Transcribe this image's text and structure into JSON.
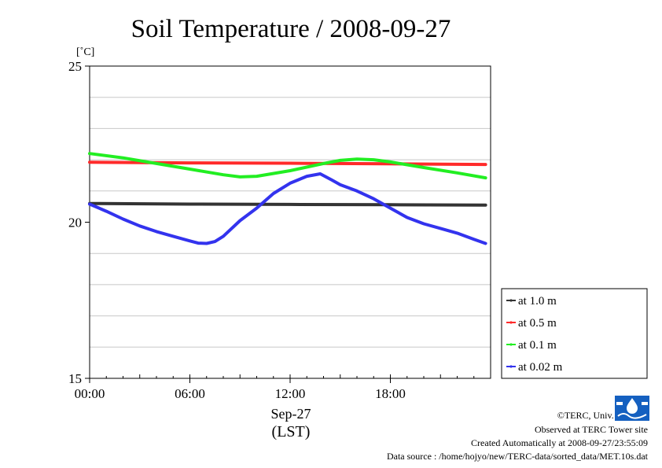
{
  "chart_data": {
    "type": "line",
    "title": "Soil Temperature / 2008-09-27",
    "unit_label": "[˚C]",
    "xlabel_line1": "Sep-27",
    "xlabel_line2": "(LST)",
    "x_domain": [
      0,
      24
    ],
    "ylim": [
      15,
      25
    ],
    "y_ticks": [
      15,
      20,
      25
    ],
    "y_grid": [
      16,
      17,
      18,
      19,
      21,
      22,
      23,
      24
    ],
    "x_ticks": [
      {
        "hour": 0,
        "label": "00:00"
      },
      {
        "hour": 6,
        "label": "06:00"
      },
      {
        "hour": 12,
        "label": "12:00"
      },
      {
        "hour": 18,
        "label": "18:00"
      }
    ],
    "grid": true,
    "legend_position": "right",
    "series": [
      {
        "name": "at 1.0 m",
        "color": "#333333",
        "x": [
          0,
          6,
          12,
          18,
          23.7
        ],
        "y": [
          20.6,
          20.58,
          20.57,
          20.56,
          20.55
        ]
      },
      {
        "name": "at 0.5 m",
        "color": "#ff2a2a",
        "x": [
          0,
          6,
          12,
          18,
          23.7
        ],
        "y": [
          21.92,
          21.9,
          21.89,
          21.87,
          21.85
        ]
      },
      {
        "name": "at 0.1 m",
        "color": "#22ee22",
        "x": [
          0,
          2,
          4,
          6,
          8,
          9,
          10,
          12,
          14,
          15,
          16,
          17,
          18,
          20,
          22,
          23.7
        ],
        "y": [
          22.2,
          22.06,
          21.88,
          21.7,
          21.52,
          21.45,
          21.47,
          21.65,
          21.88,
          21.98,
          22.02,
          22.0,
          21.93,
          21.75,
          21.58,
          21.42
        ]
      },
      {
        "name": "at 0.02 m",
        "color": "#3333ee",
        "x": [
          0,
          1,
          2,
          3,
          4,
          5,
          6,
          6.5,
          7,
          7.5,
          8,
          9,
          10,
          11,
          12,
          13,
          13.8,
          14.5,
          15,
          16,
          17,
          18,
          19,
          20,
          21,
          22,
          23,
          23.7
        ],
        "y": [
          20.58,
          20.35,
          20.1,
          19.88,
          19.7,
          19.55,
          19.4,
          19.33,
          19.32,
          19.38,
          19.55,
          20.05,
          20.45,
          20.92,
          21.25,
          21.47,
          21.55,
          21.35,
          21.2,
          21.0,
          20.75,
          20.45,
          20.15,
          19.95,
          19.8,
          19.65,
          19.45,
          19.32
        ]
      }
    ]
  },
  "credits": {
    "copyright": "©TERC, Univ. Tsukuba",
    "site": "Observed at TERC Tower site",
    "created": "Created Automatically at 2008-09-27/23:55:09",
    "source": "Data source : /home/hojyo/new/TERC-data/sorted_data/MET.10s.dat"
  },
  "logo_icon": "terc-logo-icon"
}
